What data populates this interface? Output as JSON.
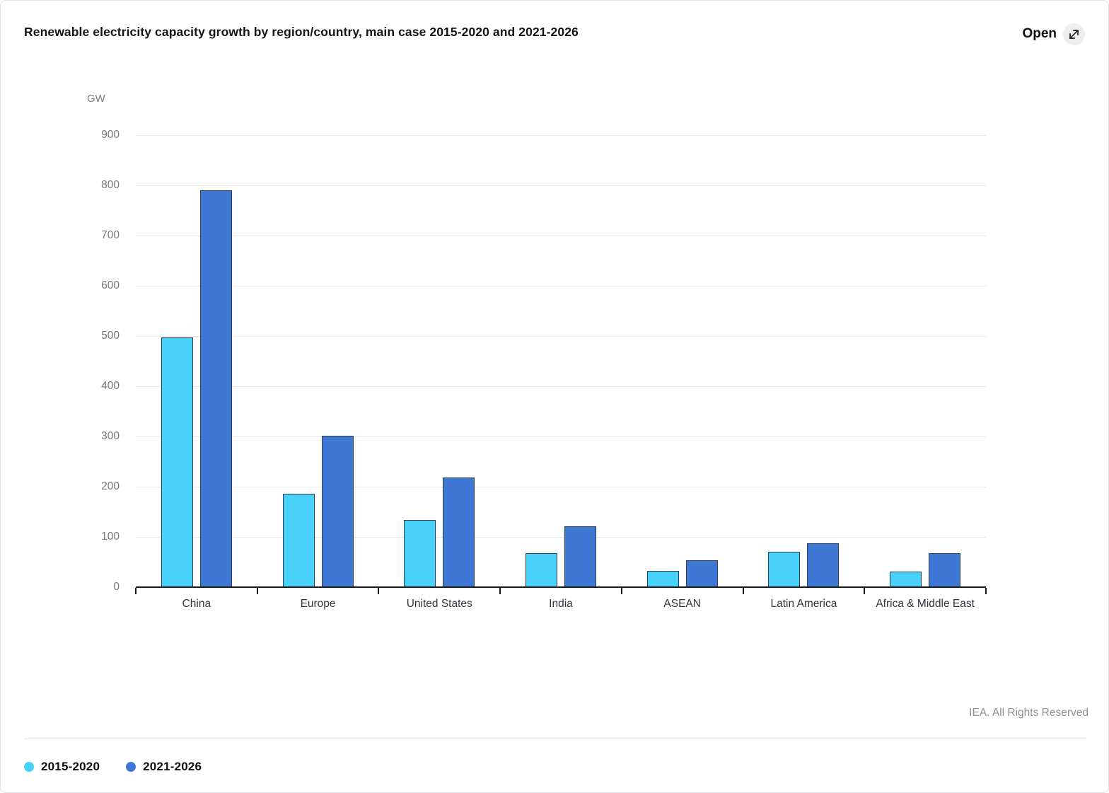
{
  "header": {
    "open_label": "Open"
  },
  "footer": {
    "credit": "IEA. All Rights Reserved"
  },
  "chart_data": {
    "type": "bar",
    "title": "Renewable electricity capacity growth by region/country, main case 2015-2020 and 2021-2026",
    "unit_label": "GW",
    "categories": [
      "China",
      "Europe",
      "United States",
      "India",
      "ASEAN",
      "Latin America",
      "Africa & Middle East"
    ],
    "series": [
      {
        "name": "2015-2020",
        "color": "#47d1fb",
        "values": [
          497,
          186,
          134,
          67,
          33,
          71,
          31
        ]
      },
      {
        "name": "2021-2026",
        "color": "#3e78d4",
        "values": [
          790,
          302,
          219,
          121,
          54,
          88,
          67
        ]
      }
    ],
    "ylim": [
      0,
      900
    ],
    "ytick_step": 100,
    "grid": "horizontal",
    "legend_position": "bottom-left"
  }
}
